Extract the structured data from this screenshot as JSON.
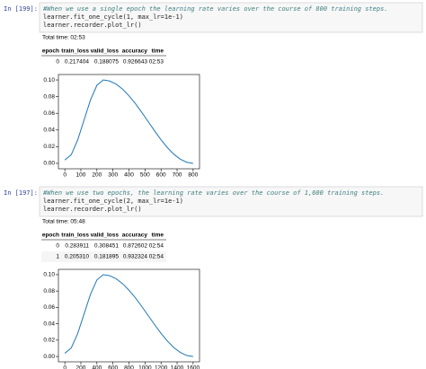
{
  "cells": [
    {
      "prompt": "In [199]:",
      "code": [
        "#When we use a single epoch the learning rate varies over the course of 800 training steps.",
        "learner.fit_one_cycle(1, max_lr=1e-1)",
        "learner.recorder.plot_lr()"
      ],
      "total_time": "Total time: 02:53",
      "table": {
        "header": [
          "epoch",
          "train_loss",
          "valid_loss",
          "accuracy",
          "time"
        ],
        "rows": [
          [
            "0",
            "0.217404",
            "0.188075",
            "0.926643",
            "02:53"
          ]
        ]
      }
    },
    {
      "prompt": "In [197]:",
      "code": [
        "#When we use two epochs, the learning rate varies over the course of 1,600 training steps.",
        "learner.fit_one_cycle(2, max_lr=1e-1)",
        "learner.recorder.plot_lr()"
      ],
      "total_time": "Total time: 05:48",
      "table": {
        "header": [
          "epoch",
          "train_loss",
          "valid_loss",
          "accuracy",
          "time"
        ],
        "rows": [
          [
            "0",
            "0.283911",
            "0.308451",
            "0.872602",
            "02:54"
          ],
          [
            "1",
            "0.205310",
            "0.181895",
            "0.932324",
            "02:54"
          ]
        ]
      }
    }
  ],
  "chart_data": [
    {
      "type": "line",
      "x": [
        0,
        40,
        80,
        120,
        160,
        200,
        240,
        280,
        320,
        360,
        400,
        440,
        480,
        520,
        560,
        600,
        640,
        680,
        720,
        760,
        800
      ],
      "values": [
        0.004,
        0.0104,
        0.028,
        0.052,
        0.076,
        0.0936,
        0.1,
        0.0987,
        0.095,
        0.089,
        0.081,
        0.0717,
        0.0611,
        0.05,
        0.0389,
        0.0283,
        0.0188,
        0.0109,
        0.005,
        0.0013,
        0
      ],
      "color": "#1f77b4",
      "xlim": [
        -40,
        840
      ],
      "ylim": [
        -0.0065,
        0.1065
      ],
      "xticks": [
        0,
        100,
        200,
        300,
        400,
        500,
        600,
        700,
        800
      ],
      "yticks": [
        {
          "value": 0,
          "label": "0.00"
        },
        {
          "value": 0.02,
          "label": "0.02"
        },
        {
          "value": 0.04,
          "label": "0.04"
        },
        {
          "value": 0.06,
          "label": "0.06"
        },
        {
          "value": 0.08,
          "label": "0.08"
        },
        {
          "value": 0.1,
          "label": "0.10"
        }
      ]
    },
    {
      "type": "line",
      "x": [
        0,
        80,
        160,
        240,
        320,
        400,
        480,
        560,
        640,
        720,
        800,
        880,
        960,
        1040,
        1120,
        1200,
        1280,
        1360,
        1440,
        1520,
        1600
      ],
      "values": [
        0.004,
        0.0104,
        0.028,
        0.052,
        0.076,
        0.0936,
        0.1,
        0.0987,
        0.095,
        0.089,
        0.081,
        0.0717,
        0.0611,
        0.05,
        0.0389,
        0.0283,
        0.0188,
        0.0109,
        0.005,
        0.0013,
        0
      ],
      "color": "#1f77b4",
      "xlim": [
        -80,
        1680
      ],
      "ylim": [
        -0.0065,
        0.1065
      ],
      "xticks": [
        0,
        200,
        400,
        600,
        800,
        1000,
        1200,
        1400,
        1600
      ],
      "yticks": [
        {
          "value": 0,
          "label": "0.00"
        },
        {
          "value": 0.02,
          "label": "0.02"
        },
        {
          "value": 0.04,
          "label": "0.04"
        },
        {
          "value": 0.06,
          "label": "0.06"
        },
        {
          "value": 0.08,
          "label": "0.08"
        },
        {
          "value": 0.1,
          "label": "0.10"
        }
      ]
    }
  ]
}
